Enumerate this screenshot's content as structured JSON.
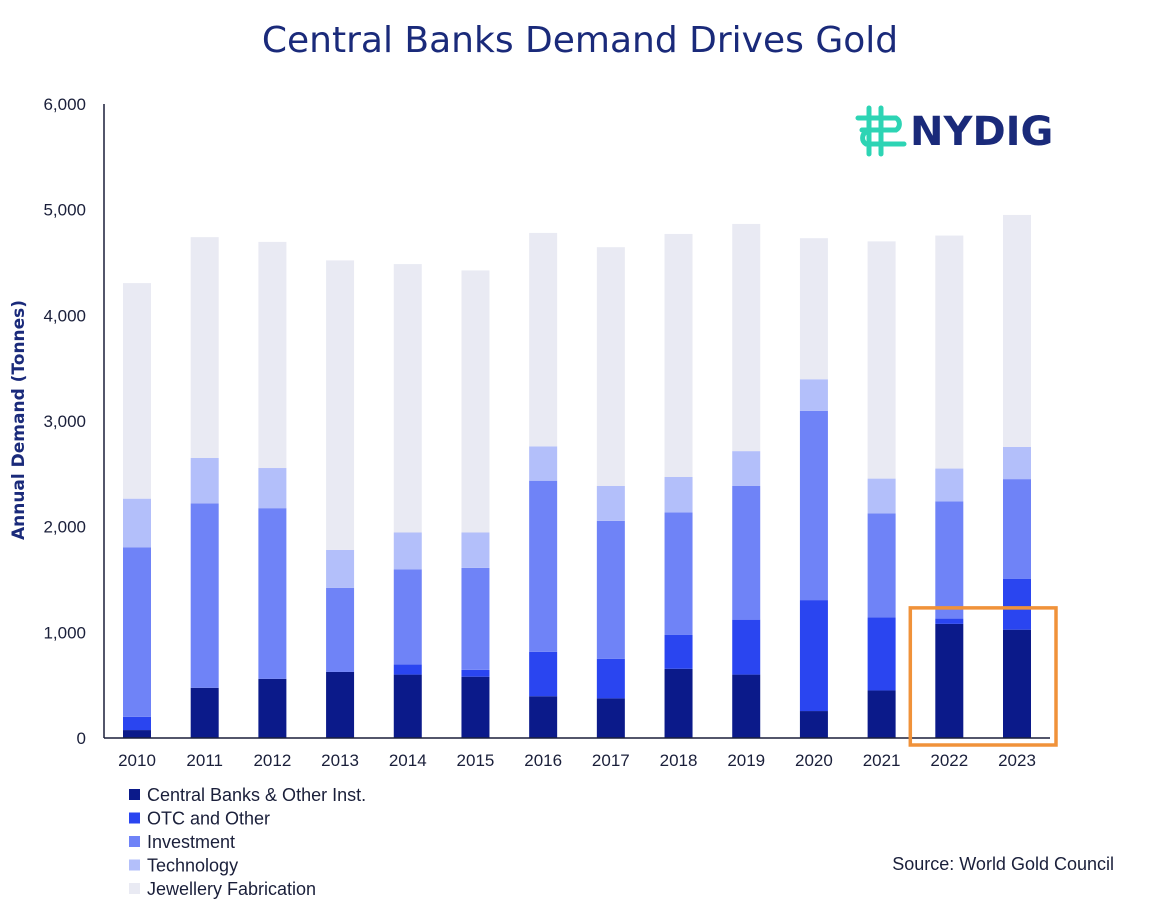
{
  "brand": {
    "name": "NYDIG",
    "logo_color": "#2dd4b4"
  },
  "source": "Source: World Gold Council",
  "chart_data": {
    "type": "bar",
    "stacked": true,
    "title": "Central Banks Demand Drives Gold",
    "xlabel": "",
    "ylabel": "Annual Demand (Tonnes)",
    "ylim": [
      0,
      6000
    ],
    "yticks": [
      0,
      1000,
      2000,
      3000,
      4000,
      5000,
      6000
    ],
    "ytick_labels": [
      "0",
      "1,000",
      "2,000",
      "3,000",
      "4,000",
      "5,000",
      "6,000"
    ],
    "categories": [
      "2010",
      "2011",
      "2012",
      "2013",
      "2014",
      "2015",
      "2016",
      "2017",
      "2018",
      "2019",
      "2020",
      "2021",
      "2022",
      "2023"
    ],
    "series": [
      {
        "name": "Central Banks & Other Inst.",
        "color": "#0b1a8a",
        "values": [
          75,
          475,
          560,
          625,
          600,
          580,
          395,
          375,
          655,
          600,
          255,
          450,
          1080,
          1025
        ]
      },
      {
        "name": "OTC and Other",
        "color": "#2a45f0",
        "values": [
          125,
          0,
          0,
          0,
          95,
          65,
          420,
          375,
          320,
          520,
          1050,
          690,
          50,
          480
        ]
      },
      {
        "name": "Investment",
        "color": "#6f83f7",
        "values": [
          1605,
          1745,
          1615,
          795,
          900,
          965,
          1620,
          1305,
          1160,
          1265,
          1790,
          985,
          1110,
          945
        ]
      },
      {
        "name": "Technology",
        "color": "#b3bffa",
        "values": [
          460,
          430,
          380,
          360,
          350,
          335,
          325,
          330,
          335,
          330,
          300,
          330,
          310,
          305
        ]
      },
      {
        "name": "Jewellery Fabrication",
        "color": "#e9eaf3",
        "values": [
          2040,
          2090,
          2140,
          2740,
          2540,
          2480,
          2020,
          2260,
          2300,
          2150,
          1335,
          2245,
          2205,
          2195
        ]
      }
    ],
    "legend": "bottom-left",
    "highlight": {
      "categories": [
        "2022",
        "2023"
      ],
      "color": "#f0923a"
    }
  }
}
